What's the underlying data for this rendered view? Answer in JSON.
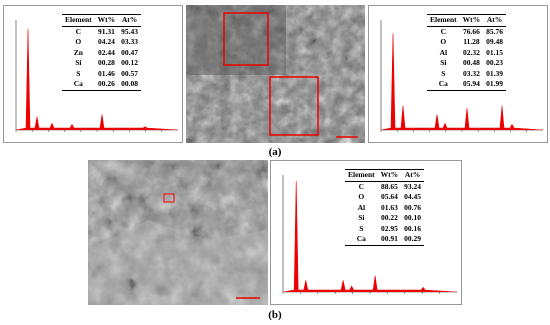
{
  "panel_a": {
    "label": "(a)",
    "tables": [
      {
        "header": [
          "Element",
          "Wt%",
          "At%"
        ],
        "rows": [
          [
            "C",
            "91.31",
            "95.43"
          ],
          [
            "O",
            "04.24",
            "03.33"
          ],
          [
            "Zn",
            "02.44",
            "00.47"
          ],
          [
            "Si",
            "00.28",
            "00.12"
          ],
          [
            "S",
            "01.46",
            "00.57"
          ],
          [
            "Ca",
            "00.26",
            "00.08"
          ]
        ]
      },
      {
        "header": [
          "Element",
          "Wt%",
          "At%"
        ],
        "rows": [
          [
            "C",
            "76.66",
            "85.76"
          ],
          [
            "O",
            "11.28",
            "09.48"
          ],
          [
            "Al",
            "02.32",
            "01.15"
          ],
          [
            "Si",
            "00.48",
            "00.23"
          ],
          [
            "S",
            "03.32",
            "01.39"
          ],
          [
            "Ca",
            "05.94",
            "01.99"
          ]
        ]
      }
    ]
  },
  "panel_b": {
    "label": "(b)",
    "tables": [
      {
        "header": [
          "Element",
          "Wt%",
          "At%"
        ],
        "rows": [
          [
            "C",
            "88.65",
            "93.24"
          ],
          [
            "O",
            "05.64",
            "04.45"
          ],
          [
            "Al",
            "01.63",
            "00.76"
          ],
          [
            "Si",
            "00.22",
            "00.10"
          ],
          [
            "S",
            "02.95",
            "00.16"
          ],
          [
            "Ca",
            "00.91",
            "00.29"
          ]
        ]
      }
    ]
  }
}
